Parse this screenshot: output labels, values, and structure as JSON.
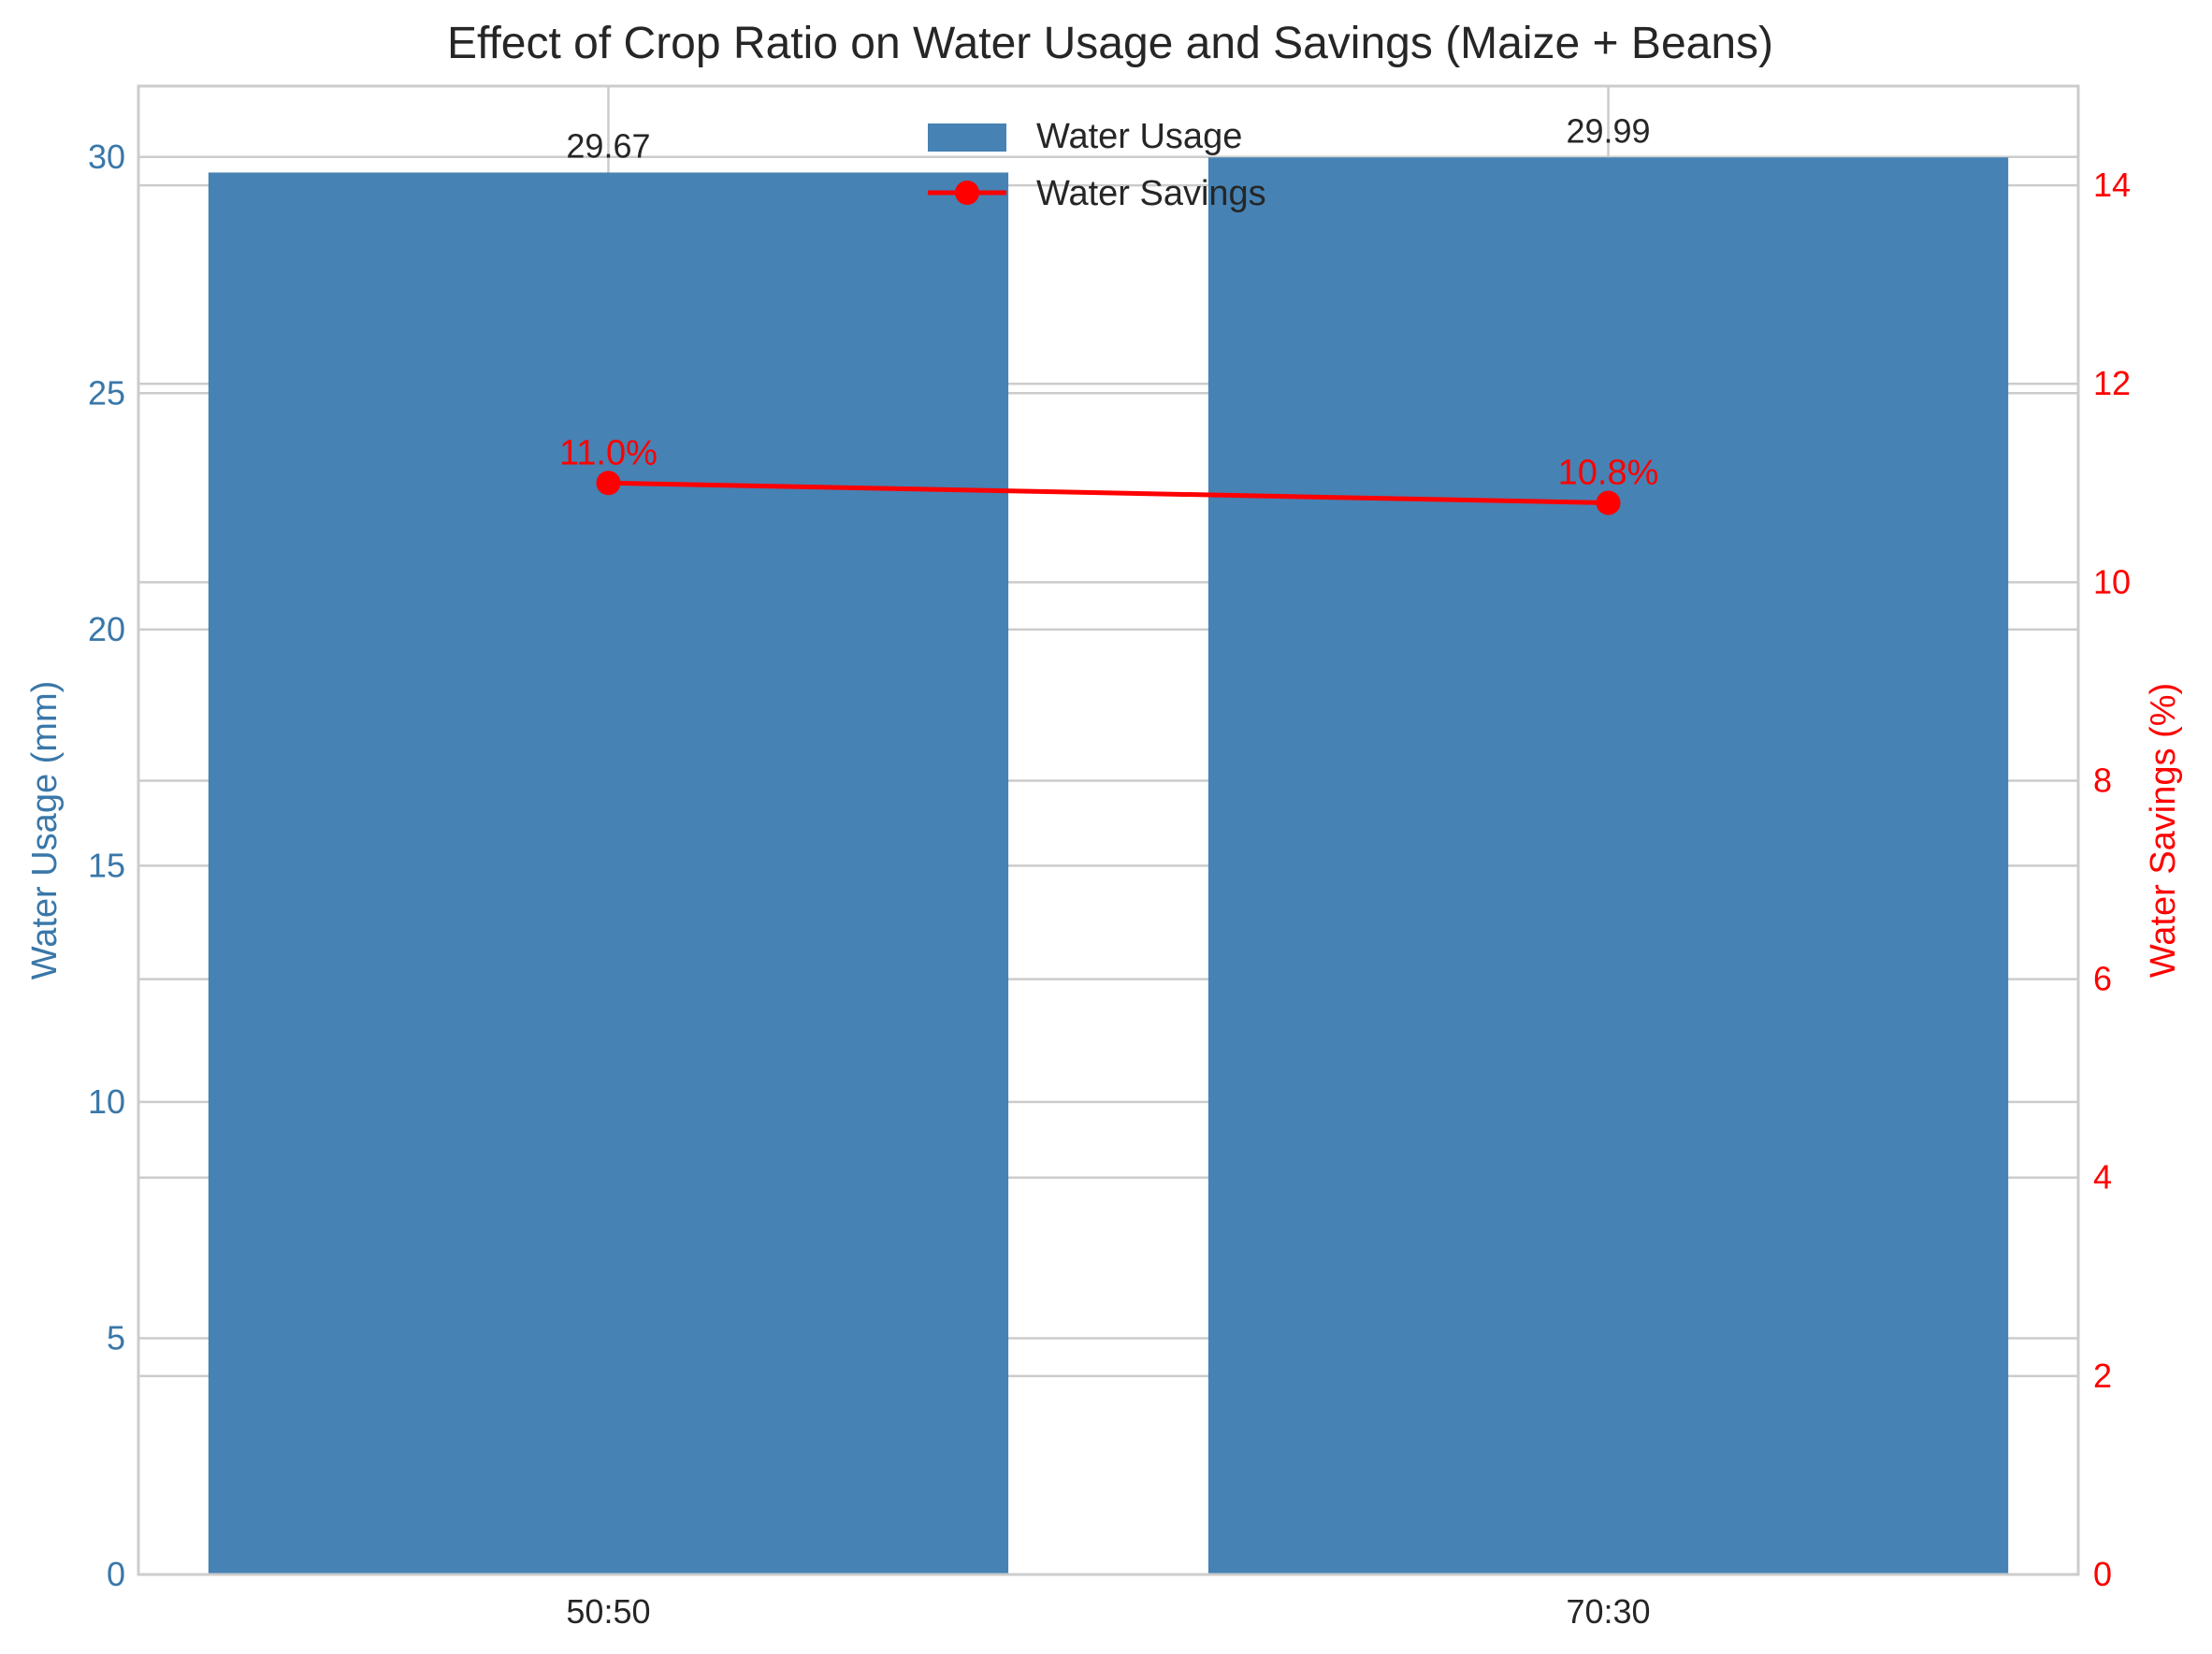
{
  "chart_data": {
    "type": "bar",
    "title": "Effect of Crop Ratio on Water Usage and Savings (Maize + Beans)",
    "categories": [
      "50:50",
      "70:30"
    ],
    "series": [
      {
        "name": "Water Usage",
        "type": "bar",
        "axis": "left",
        "values": [
          29.67,
          29.99
        ],
        "labels": [
          "29.67",
          "29.99"
        ],
        "color": "#4682b4"
      },
      {
        "name": "Water Savings",
        "type": "line",
        "axis": "right",
        "values": [
          11.0,
          10.8
        ],
        "labels": [
          "11.0%",
          "10.8%"
        ],
        "color": "#ff0000"
      }
    ],
    "ylabel": "Water Usage (mm)",
    "ylim": [
      0,
      31.5
    ],
    "yticks": [
      0,
      5,
      10,
      15,
      20,
      25,
      30
    ],
    "ylabel_right": "Water Savings (%)",
    "ylim_right": [
      0,
      15
    ],
    "yticks_right": [
      0,
      2,
      4,
      6,
      8,
      10,
      12,
      14
    ],
    "grid": true,
    "legend_position": "upper-center",
    "colors": {
      "left_axis": "#3a77a8",
      "right_axis": "#ff0000",
      "grid": "#cccccc",
      "text": "#262626"
    }
  }
}
